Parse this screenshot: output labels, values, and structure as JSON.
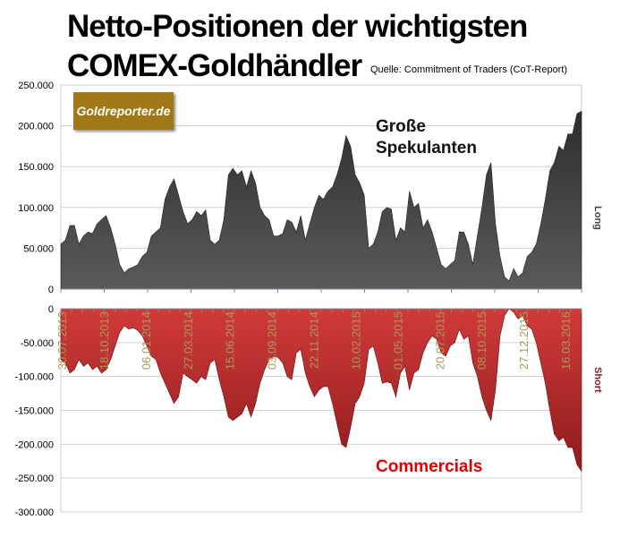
{
  "chart_data": [
    {
      "type": "area",
      "title": "Netto-Positionen der wichtigsten COMEX-Goldhändler",
      "subtitle": "Quelle: Commitment of Traders (CoT-Report)",
      "series_label": "Große Spekulanten",
      "side_label": "Long",
      "color": "#444444",
      "yticks": [
        "250.000",
        "200.000",
        "150.000",
        "100.000",
        "50.000",
        "0"
      ],
      "ylim": [
        0,
        250000
      ],
      "values": [
        55,
        60,
        78,
        78,
        55,
        65,
        70,
        68,
        80,
        85,
        90,
        75,
        55,
        30,
        20,
        25,
        27,
        30,
        40,
        45,
        65,
        70,
        75,
        110,
        125,
        135,
        115,
        95,
        80,
        85,
        95,
        90,
        97,
        60,
        55,
        60,
        85,
        140,
        148,
        140,
        145,
        125,
        145,
        130,
        100,
        90,
        85,
        65,
        65,
        68,
        85,
        82,
        70,
        90,
        60,
        80,
        100,
        115,
        110,
        120,
        125,
        140,
        160,
        188,
        175,
        140,
        130,
        115,
        50,
        55,
        70,
        95,
        100,
        98,
        60,
        75,
        70,
        120,
        100,
        105,
        75,
        85,
        70,
        50,
        30,
        25,
        30,
        35,
        70,
        70,
        55,
        30,
        65,
        100,
        140,
        155,
        80,
        40,
        15,
        10,
        25,
        15,
        20,
        40,
        45,
        55,
        80,
        110,
        145,
        155,
        175,
        170,
        190,
        190,
        215,
        218
      ]
    },
    {
      "type": "area",
      "series_label": "Commercials",
      "side_label": "Short",
      "color": "#b52a2a",
      "yticks": [
        "0",
        "-50.000",
        "-100.000",
        "-150.000",
        "-200.000",
        "-250.000",
        "-300.000"
      ],
      "ylim": [
        -300000,
        0
      ],
      "xticks": [
        "30.07.2013",
        "18.10.2013",
        "06.01.2014",
        "27.03.2014",
        "15.06.2014",
        "03.09.2014",
        "22.11.2014",
        "10.02.2015",
        "01.05.2015",
        "20.07.2015",
        "08.10.2015",
        "27.12.2015",
        "16.03.2016"
      ],
      "values": [
        -75,
        -80,
        -95,
        -90,
        -75,
        -85,
        -80,
        -90,
        -85,
        -95,
        -90,
        -75,
        -55,
        -35,
        -25,
        -30,
        -28,
        -32,
        -40,
        -55,
        -70,
        -75,
        -95,
        -110,
        -125,
        -140,
        -130,
        -95,
        -100,
        -105,
        -110,
        -100,
        -105,
        -80,
        -75,
        -105,
        -130,
        -160,
        -165,
        -160,
        -155,
        -140,
        -160,
        -140,
        -110,
        -90,
        -75,
        -70,
        -72,
        -80,
        -100,
        -105,
        -65,
        -60,
        -95,
        -115,
        -130,
        -120,
        -115,
        -115,
        -140,
        -170,
        -200,
        -205,
        -175,
        -140,
        -130,
        -110,
        -60,
        -55,
        -80,
        -110,
        -108,
        -110,
        -130,
        -95,
        -85,
        -120,
        -95,
        -90,
        -65,
        -50,
        -40,
        -45,
        -65,
        -70,
        -55,
        -50,
        -30,
        -45,
        -40,
        -80,
        -100,
        -130,
        -150,
        -165,
        -120,
        -40,
        -10,
        0,
        -5,
        -15,
        -10,
        -25,
        -30,
        -50,
        -80,
        -110,
        -150,
        -185,
        -195,
        -190,
        -205,
        -205,
        -230,
        -240
      ]
    }
  ],
  "value_unit_note": "thousands",
  "logo_text": "Goldreporter.de"
}
